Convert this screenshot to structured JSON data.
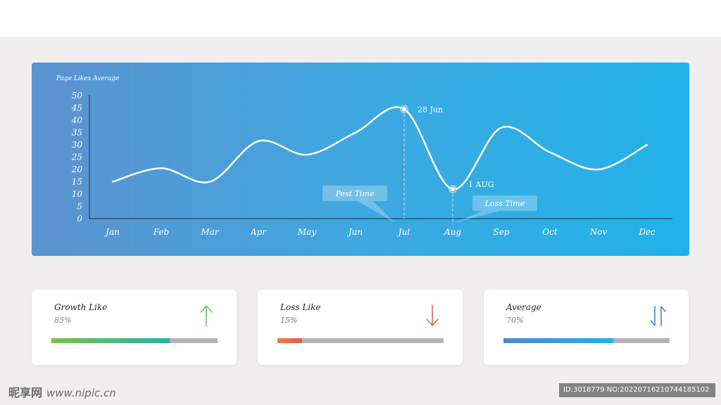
{
  "chart_data": {
    "type": "line",
    "title": "Page Likes Average",
    "categories": [
      "Jan",
      "Feb",
      "Mar",
      "Apr",
      "May",
      "Jun",
      "Jul",
      "Aug",
      "Sep",
      "Oct",
      "Nov",
      "Dec"
    ],
    "y_ticks": [
      "0",
      "5",
      "10",
      "15",
      "20",
      "25",
      "30",
      "35",
      "40",
      "45",
      "50"
    ],
    "ylim": [
      0,
      50
    ],
    "series": [
      {
        "values": [
          15,
          20.5,
          15,
          31.5,
          26,
          35,
          44.5,
          12,
          37,
          27,
          20,
          30
        ]
      }
    ],
    "annotations": {
      "peak_label": "28 Jun",
      "low_label": "1 AUG",
      "peak_callout": "Pest Time",
      "low_callout": "Loss Time"
    },
    "grid": false
  },
  "cards": [
    {
      "title": "Growth Like",
      "value": "85%",
      "fill": 0.71,
      "icon": "arrow-up-icon",
      "icon_color": "#7cc36a",
      "bar_from": "#7bc04a",
      "bar_to": "#1fb5a7"
    },
    {
      "title": "Loss Like",
      "value": "15%",
      "fill": 0.15,
      "icon": "arrow-down-icon",
      "icon_color": "#e2685a",
      "bar_from": "#ee8244",
      "bar_to": "#e2574a"
    },
    {
      "title": "Average",
      "value": "70%",
      "fill": 0.66,
      "icon": "arrows-up-down-icon",
      "icon_color": "#4a87c7",
      "bar_from": "#5187cc",
      "bar_to": "#22b2ea"
    }
  ],
  "watermark": {
    "logo": "昵享网",
    "url": "www.nipic.cn",
    "id_text": "ID:3018779 NO:20220716210744185102"
  }
}
